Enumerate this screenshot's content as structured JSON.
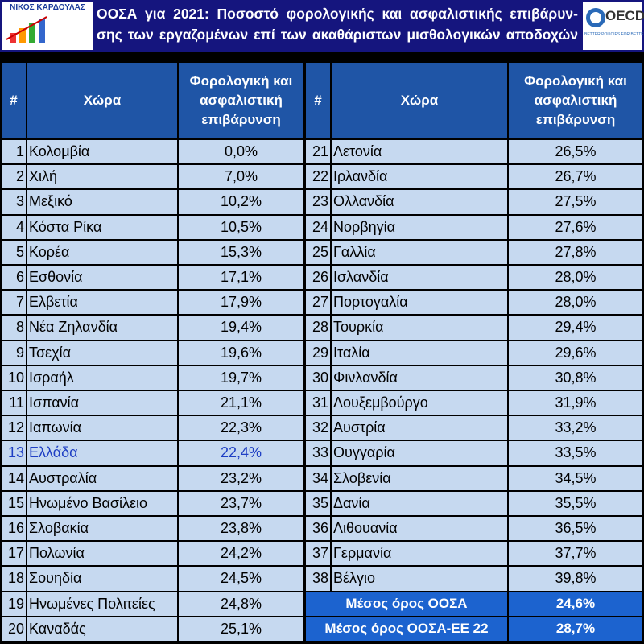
{
  "header": {
    "title_lines": [
      "ΟΟΣΑ για 2021: Ποσοστό φορολογικής και ασφαλιστικής επιβάρυν-",
      "σης των εργαζομένων επί των ακαθάριστων μισθολογικών αποδοχών"
    ],
    "left_logo": "ΝΙΚΟΣ ΚΑΡΔΟΥΛΑΣ",
    "right_logo": "OECD",
    "right_logo_tagline": "BETTER POLICIES FOR BETTER LIVES"
  },
  "table": {
    "columns": [
      "#",
      "Χώρα",
      "Φορολογική και ασφαλιστική επιβάρυνση"
    ],
    "left_rows": [
      [
        1,
        "Κολομβία",
        "0,0%"
      ],
      [
        2,
        "Χιλή",
        "7,0%"
      ],
      [
        3,
        "Μεξικό",
        "10,2%"
      ],
      [
        4,
        "Κόστα Ρίκα",
        "10,5%"
      ],
      [
        5,
        "Κορέα",
        "15,3%"
      ],
      [
        6,
        "Εσθονία",
        "17,1%"
      ],
      [
        7,
        "Ελβετία",
        "17,9%"
      ],
      [
        8,
        "Νέα Ζηλανδία",
        "19,4%"
      ],
      [
        9,
        "Τσεχία",
        "19,6%"
      ],
      [
        10,
        "Ισραήλ",
        "19,7%"
      ],
      [
        11,
        "Ισπανία",
        "21,1%"
      ],
      [
        12,
        "Ιαπωνία",
        "22,3%"
      ],
      [
        13,
        "Ελλάδα",
        "22,4%"
      ],
      [
        14,
        "Αυστραλία",
        "23,2%"
      ],
      [
        15,
        "Ηνωμένο Βασίλειο",
        "23,7%"
      ],
      [
        16,
        "Σλοβακία",
        "23,8%"
      ],
      [
        17,
        "Πολωνία",
        "24,2%"
      ],
      [
        18,
        "Σουηδία",
        "24,5%"
      ],
      [
        19,
        "Ηνωμένες Πολιτείες",
        "24,8%"
      ],
      [
        20,
        "Καναδάς",
        "25,1%"
      ]
    ],
    "right_rows": [
      [
        21,
        "Λετονία",
        "26,5%"
      ],
      [
        22,
        "Ιρλανδία",
        "26,7%"
      ],
      [
        23,
        "Ολλανδία",
        "27,5%"
      ],
      [
        24,
        "Νορβηγία",
        "27,6%"
      ],
      [
        25,
        "Γαλλία",
        "27,8%"
      ],
      [
        26,
        "Ισλανδία",
        "28,0%"
      ],
      [
        27,
        "Πορτογαλία",
        "28,0%"
      ],
      [
        28,
        "Τουρκία",
        "29,4%"
      ],
      [
        29,
        "Ιταλία",
        "29,6%"
      ],
      [
        30,
        "Φινλανδία",
        "30,8%"
      ],
      [
        31,
        "Λουξεμβούργο",
        "31,9%"
      ],
      [
        32,
        "Αυστρία",
        "33,2%"
      ],
      [
        33,
        "Ουγγαρία",
        "33,5%"
      ],
      [
        34,
        "Σλοβενία",
        "34,5%"
      ],
      [
        35,
        "Δανία",
        "35,5%"
      ],
      [
        36,
        "Λιθουανία",
        "36,5%"
      ],
      [
        37,
        "Γερμανία",
        "37,7%"
      ],
      [
        38,
        "Βέλγιο",
        "39,8%"
      ]
    ],
    "summary": [
      {
        "label": "Μέσος όρος ΟΟΣΑ",
        "value": "24,6%"
      },
      {
        "label": "Μέσος όρος ΟΟΣΑ-ΕΕ 22",
        "value": "28,7%"
      }
    ],
    "highlight": {
      "row": 12,
      "color": "#1f3fc4"
    }
  }
}
